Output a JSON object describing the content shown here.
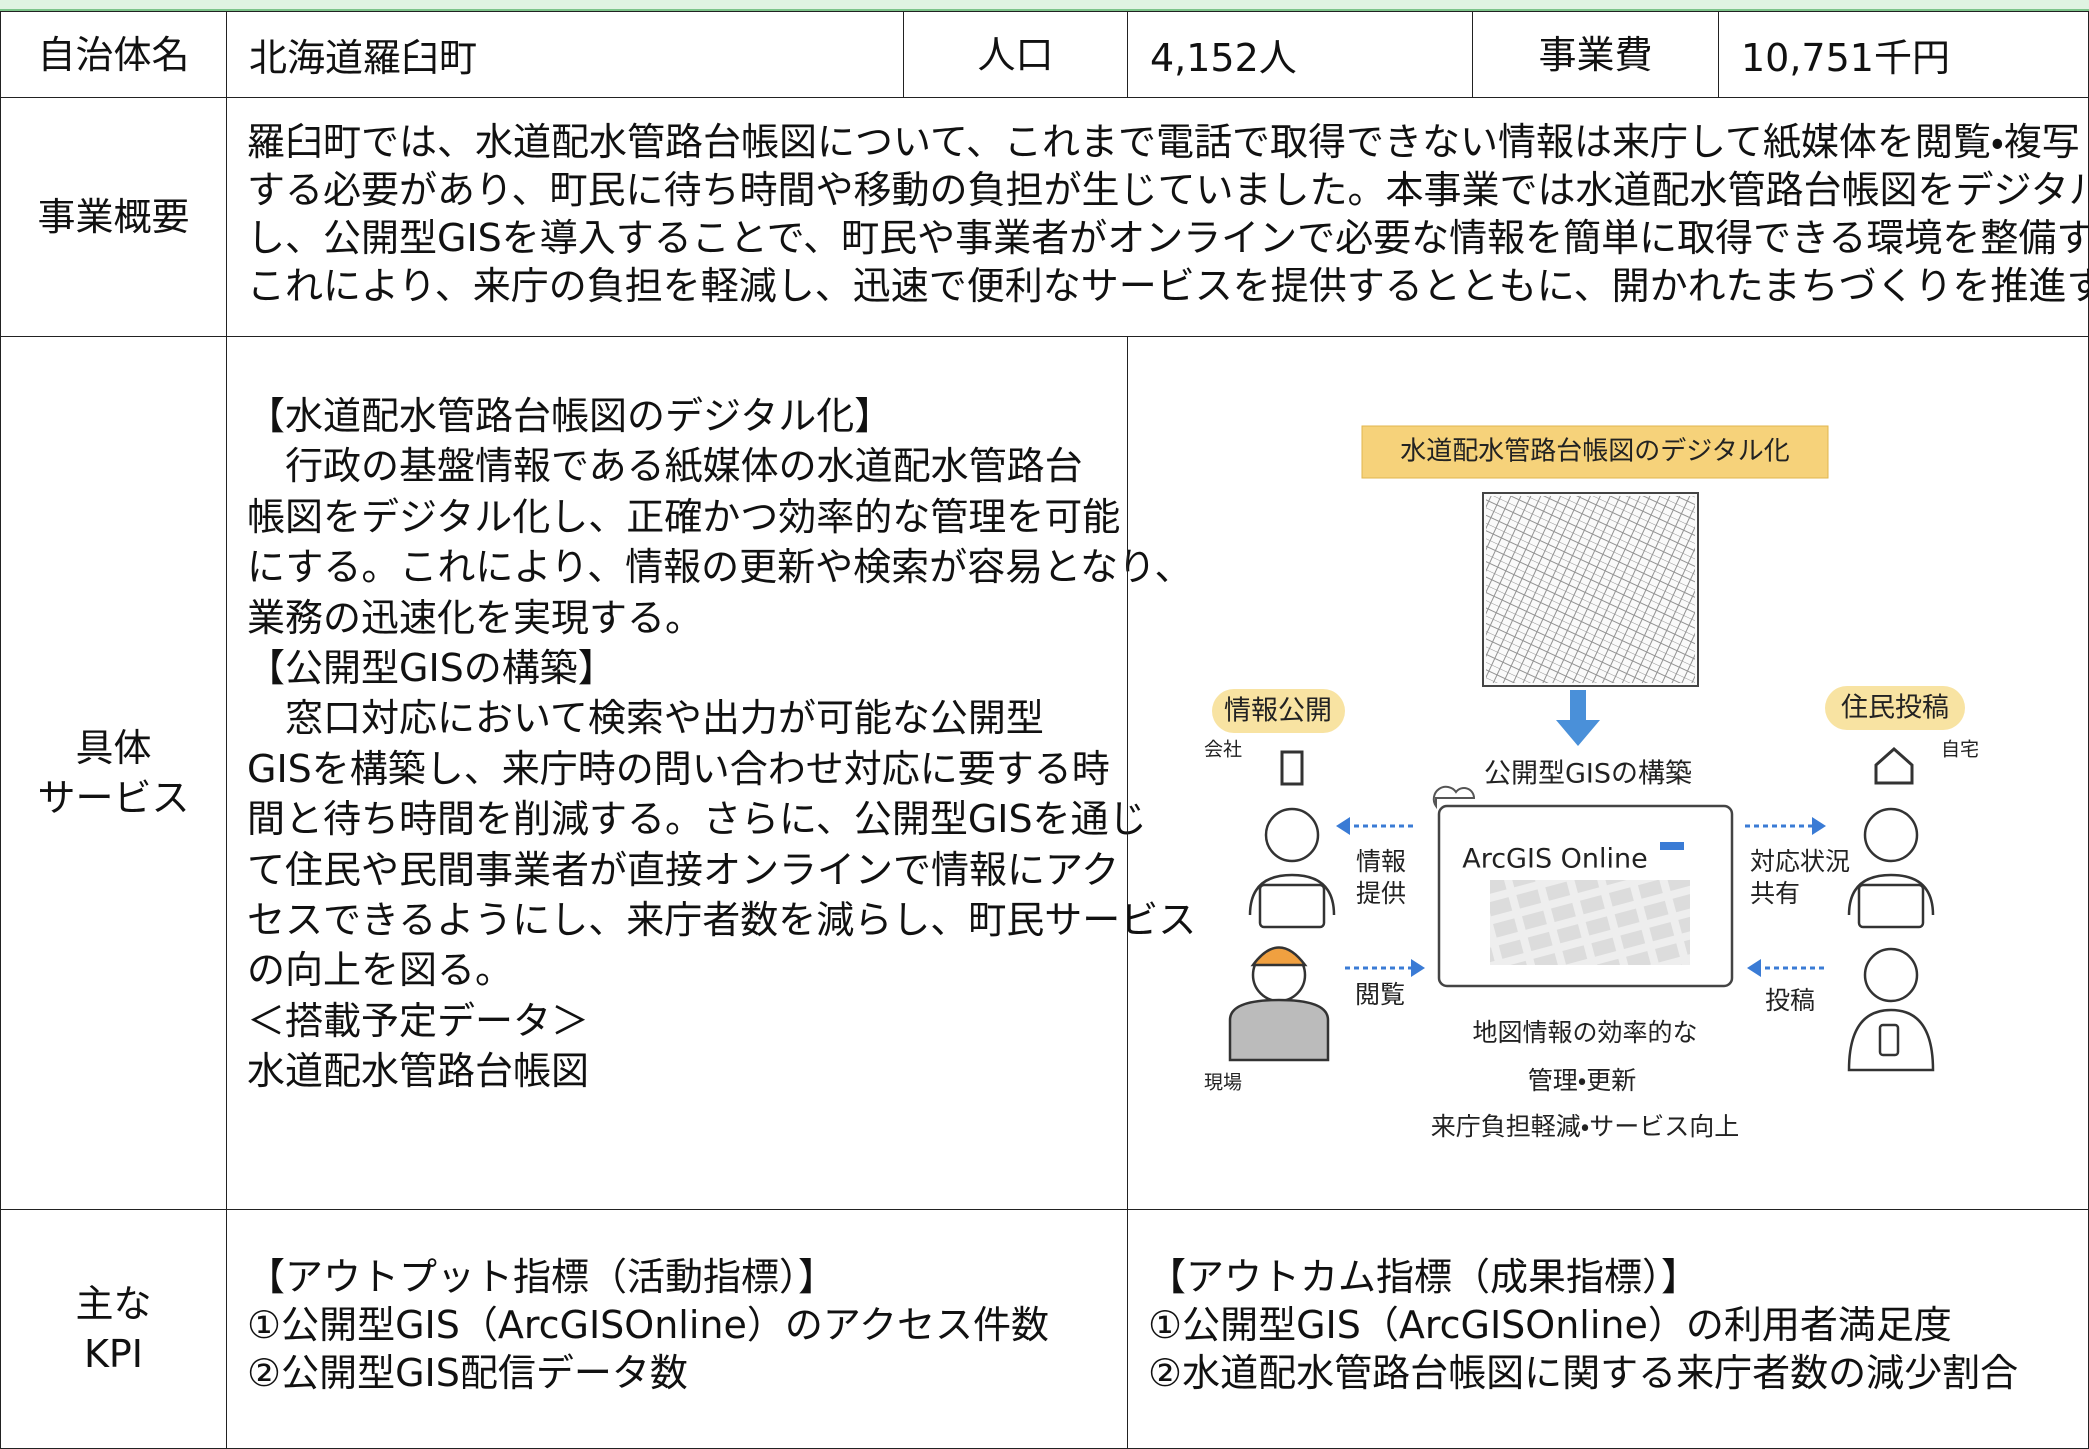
{
  "header": {
    "municipality_label": "自治体名",
    "municipality": "北海道羅臼町",
    "population_label": "人口",
    "population": "4,152人",
    "cost_label": "事業費",
    "cost": "10,751千円"
  },
  "overview": {
    "label": "事業概要",
    "lines": [
      "羅臼町では、水道配水管路台帳図について、これまで電話で取得できない情報は来庁して紙媒体を閲覧・複写",
      "する必要があり、町民に待ち時間や移動の負担が生じていました。本事業では水道配水管路台帳図をデジタル化",
      "し、公開型GISを導入することで、町民や事業者がオンラインで必要な情報を簡単に取得できる環境を整備する。",
      "これにより、来庁の負担を軽減し、迅速で便利なサービスを提供するとともに、開かれたまちづくりを推進する。"
    ]
  },
  "service": {
    "label": [
      "具体",
      "サービス"
    ],
    "lines": [
      "【水道配水管路台帳図のデジタル化】",
      "　行政の基盤情報である紙媒体の水道配水管路台",
      "帳図をデジタル化し、正確かつ効率的な管理を可能",
      "にする。これにより、情報の更新や検索が容易となり、",
      "業務の迅速化を実現する。",
      "【公開型GISの構築】",
      "　窓口対応において検索や出力が可能な公開型",
      "GISを構築し、来庁時の問い合わせ対応に要する時",
      "間と待ち時間を削減する。さらに、公開型GISを通じ",
      "て住民や民間事業者が直接オンラインで情報にアク",
      "セスできるようにし、来庁者数を減らし、町民サービス",
      "の向上を図る。",
      "＜搭載予定データ＞",
      "水道配水管路台帳図"
    ]
  },
  "diagram": {
    "banner": "水道配水管路台帳図のデジタル化",
    "left_tag": "情報公開",
    "right_tag": "住民投稿",
    "company": "会社",
    "home": "自宅",
    "site": "現場",
    "gis_title": "公開型GISの構築",
    "screen_title": "ArcGIS Online",
    "provide": [
      "情報",
      "提供"
    ],
    "share": [
      "対応状況",
      "共有"
    ],
    "view": "閲覧",
    "post": "投稿",
    "effects": [
      "地図情報の効率的な",
      "管理・更新",
      "来庁負担軽減・サービス向上"
    ]
  },
  "kpi": {
    "label": [
      "主な",
      "KPI"
    ],
    "output": [
      "【アウトプット指標（活動指標）】",
      "①公開型GIS（ArcGISOnline）のアクセス件数",
      "②公開型GIS配信データ数"
    ],
    "outcome": [
      "【アウトカム指標（成果指標）】",
      "①公開型GIS（ArcGISOnline）の利用者満足度",
      "②水道配水管路台帳図に関する来庁者数の減少割合"
    ]
  }
}
